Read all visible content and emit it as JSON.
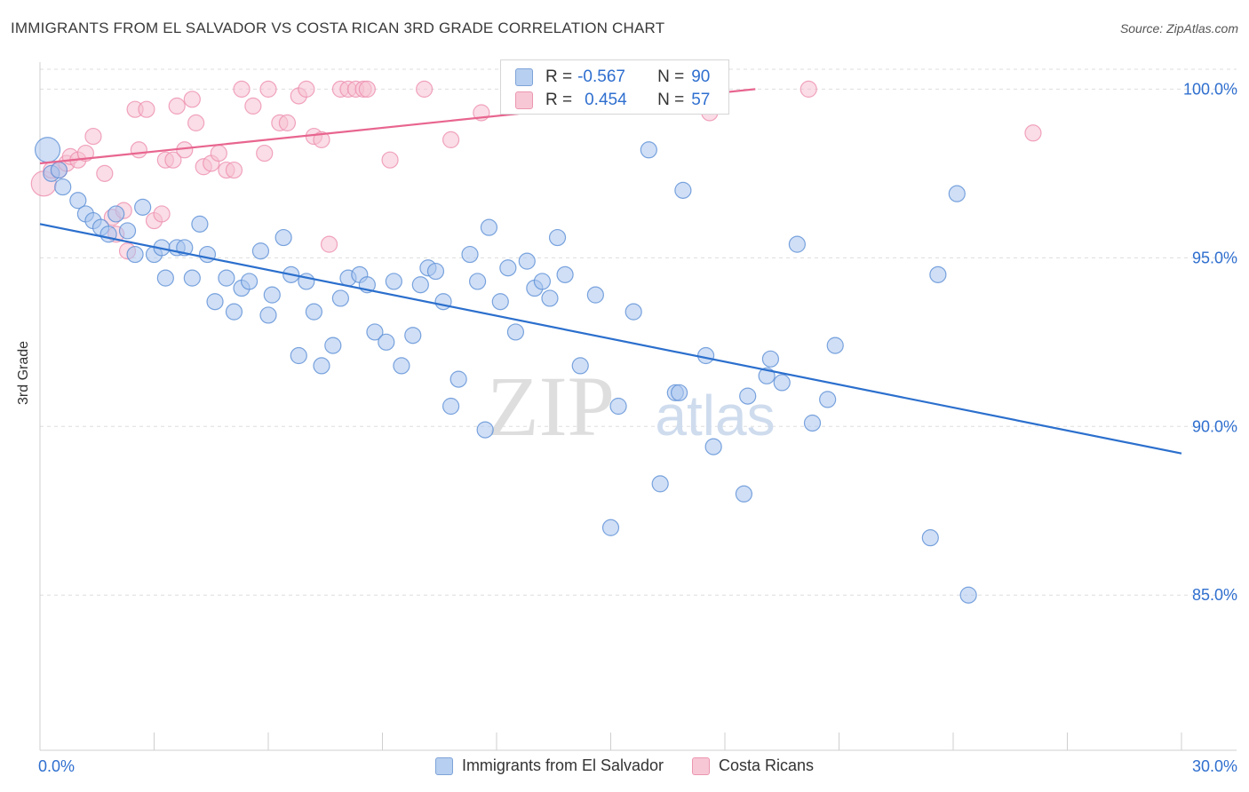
{
  "title": "IMMIGRANTS FROM EL SALVADOR VS COSTA RICAN 3RD GRADE CORRELATION CHART",
  "source": "Source: ZipAtlas.com",
  "watermark": {
    "zip": "ZIP",
    "atlas": "atlas"
  },
  "legend_box": {
    "rows": [
      {
        "r_label": "R =",
        "r_value": "-0.567",
        "n_label": "N =",
        "n_value": "90"
      },
      {
        "r_label": "R =",
        "r_value": "0.454",
        "n_label": "N =",
        "n_value": "57"
      }
    ]
  },
  "colors": {
    "blue": "#5b8fd6",
    "blue_fill": "#a9c5ee",
    "blue_line": "#2b6fcd",
    "pink": "#ee8fae",
    "pink_fill": "#f6c1d2",
    "pink_line": "#e8658f",
    "axis_text": "#2f6fcf",
    "grid": "#dddddd"
  },
  "chart_data": {
    "type": "scatter",
    "title": "IMMIGRANTS FROM EL SALVADOR VS COSTA RICAN 3RD GRADE CORRELATION CHART",
    "xlabel": "",
    "ylabel": "3rd Grade",
    "xlim": [
      0,
      30
    ],
    "ylim": [
      80.4,
      100.8
    ],
    "x_tick_labels": [
      "0.0%",
      "30.0%"
    ],
    "y_ticks": [
      85,
      90,
      95,
      100
    ],
    "y_tick_labels": [
      "85.0%",
      "90.0%",
      "95.0%",
      "100.0%"
    ],
    "grid": true,
    "legend_position": "bottom",
    "series": [
      {
        "name": "Immigrants from El Salvador",
        "color": "#5b8fd6",
        "r": -0.567,
        "n": 90,
        "trend": {
          "x": [
            0,
            30
          ],
          "y": [
            96.0,
            89.2
          ]
        },
        "points": [
          [
            0.2,
            98.2,
            14
          ],
          [
            0.3,
            97.5,
            9
          ],
          [
            0.5,
            97.6,
            9
          ],
          [
            0.6,
            97.1,
            9
          ],
          [
            1.0,
            96.7,
            9
          ],
          [
            1.2,
            96.3,
            9
          ],
          [
            1.4,
            96.1,
            9
          ],
          [
            1.6,
            95.9,
            9
          ],
          [
            1.8,
            95.7,
            9
          ],
          [
            2.0,
            96.3,
            9
          ],
          [
            2.3,
            95.8,
            9
          ],
          [
            2.5,
            95.1,
            9
          ],
          [
            2.7,
            96.5,
            9
          ],
          [
            3.0,
            95.1,
            9
          ],
          [
            3.2,
            95.3,
            9
          ],
          [
            3.3,
            94.4,
            9
          ],
          [
            3.6,
            95.3,
            9
          ],
          [
            3.8,
            95.3,
            9
          ],
          [
            4.0,
            94.4,
            9
          ],
          [
            4.2,
            96.0,
            9
          ],
          [
            4.4,
            95.1,
            9
          ],
          [
            4.6,
            93.7,
            9
          ],
          [
            4.9,
            94.4,
            9
          ],
          [
            5.1,
            93.4,
            9
          ],
          [
            5.3,
            94.1,
            9
          ],
          [
            5.5,
            94.3,
            9
          ],
          [
            5.8,
            95.2,
            9
          ],
          [
            6.0,
            93.3,
            9
          ],
          [
            6.1,
            93.9,
            9
          ],
          [
            6.4,
            95.6,
            9
          ],
          [
            6.6,
            94.5,
            9
          ],
          [
            6.8,
            92.1,
            9
          ],
          [
            7.0,
            94.3,
            9
          ],
          [
            7.2,
            93.4,
            9
          ],
          [
            7.4,
            91.8,
            9
          ],
          [
            7.7,
            92.4,
            9
          ],
          [
            7.9,
            93.8,
            9
          ],
          [
            8.1,
            94.4,
            9
          ],
          [
            8.4,
            94.5,
            9
          ],
          [
            8.6,
            94.2,
            9
          ],
          [
            8.8,
            92.8,
            9
          ],
          [
            9.1,
            92.5,
            9
          ],
          [
            9.3,
            94.3,
            9
          ],
          [
            9.5,
            91.8,
            9
          ],
          [
            9.8,
            92.7,
            9
          ],
          [
            10.0,
            94.2,
            9
          ],
          [
            10.2,
            94.7,
            9
          ],
          [
            10.4,
            94.6,
            9
          ],
          [
            10.6,
            93.7,
            9
          ],
          [
            10.8,
            90.6,
            9
          ],
          [
            11.0,
            91.4,
            9
          ],
          [
            11.3,
            95.1,
            9
          ],
          [
            11.5,
            94.3,
            9
          ],
          [
            11.7,
            89.9,
            9
          ],
          [
            11.8,
            95.9,
            9
          ],
          [
            12.1,
            93.7,
            9
          ],
          [
            12.3,
            94.7,
            9
          ],
          [
            12.5,
            92.8,
            9
          ],
          [
            12.8,
            94.9,
            9
          ],
          [
            13.0,
            94.1,
            9
          ],
          [
            13.2,
            94.3,
            9
          ],
          [
            13.4,
            93.8,
            9
          ],
          [
            13.6,
            95.6,
            9
          ],
          [
            13.8,
            94.5,
            9
          ],
          [
            14.2,
            91.8,
            9
          ],
          [
            14.6,
            93.9,
            9
          ],
          [
            15.0,
            87.0,
            9
          ],
          [
            15.2,
            90.6,
            9
          ],
          [
            15.6,
            93.4,
            9
          ],
          [
            16.0,
            98.2,
            9
          ],
          [
            16.3,
            88.3,
            9
          ],
          [
            16.7,
            91.0,
            9
          ],
          [
            16.8,
            91.0,
            9
          ],
          [
            16.9,
            97.0,
            9
          ],
          [
            17.5,
            92.1,
            9
          ],
          [
            17.7,
            89.4,
            9
          ],
          [
            18.5,
            88.0,
            9
          ],
          [
            18.6,
            90.9,
            9
          ],
          [
            19.1,
            91.5,
            9
          ],
          [
            19.2,
            92.0,
            9
          ],
          [
            19.5,
            91.3,
            9
          ],
          [
            19.9,
            95.4,
            9
          ],
          [
            20.3,
            90.1,
            9
          ],
          [
            20.7,
            90.8,
            9
          ],
          [
            20.9,
            92.4,
            9
          ],
          [
            23.4,
            86.7,
            9
          ],
          [
            23.6,
            94.5,
            9
          ],
          [
            24.1,
            96.9,
            9
          ],
          [
            24.4,
            85.0,
            9
          ],
          [
            13.2,
            90.0,
            0
          ]
        ]
      },
      {
        "name": "Costa Ricans",
        "color": "#ee8fae",
        "r": 0.454,
        "n": 57,
        "trend": {
          "x": [
            0,
            18.8
          ],
          "y": [
            97.8,
            100.0
          ]
        },
        "points": [
          [
            0.1,
            97.2,
            14
          ],
          [
            0.3,
            97.6,
            9
          ],
          [
            0.5,
            97.6,
            9
          ],
          [
            0.7,
            97.8,
            9
          ],
          [
            0.8,
            98.0,
            9
          ],
          [
            1.0,
            97.9,
            9
          ],
          [
            1.2,
            98.1,
            9
          ],
          [
            1.4,
            98.6,
            9
          ],
          [
            1.7,
            97.5,
            9
          ],
          [
            1.9,
            96.2,
            9
          ],
          [
            2.0,
            95.7,
            9
          ],
          [
            2.2,
            96.4,
            9
          ],
          [
            2.3,
            95.2,
            9
          ],
          [
            2.5,
            99.4,
            9
          ],
          [
            2.6,
            98.2,
            9
          ],
          [
            2.8,
            99.4,
            9
          ],
          [
            3.0,
            96.1,
            9
          ],
          [
            3.2,
            96.3,
            9
          ],
          [
            3.3,
            97.9,
            9
          ],
          [
            3.5,
            97.9,
            9
          ],
          [
            3.6,
            99.5,
            9
          ],
          [
            3.8,
            98.2,
            9
          ],
          [
            4.0,
            99.7,
            9
          ],
          [
            4.1,
            99.0,
            9
          ],
          [
            4.3,
            97.7,
            9
          ],
          [
            4.5,
            97.8,
            9
          ],
          [
            4.7,
            98.1,
            9
          ],
          [
            4.9,
            97.6,
            9
          ],
          [
            5.1,
            97.6,
            9
          ],
          [
            5.3,
            100.0,
            9
          ],
          [
            5.6,
            99.5,
            9
          ],
          [
            5.9,
            98.1,
            9
          ],
          [
            6.0,
            100.0,
            9
          ],
          [
            6.3,
            99.0,
            9
          ],
          [
            6.5,
            99.0,
            9
          ],
          [
            6.8,
            99.8,
            9
          ],
          [
            7.0,
            100.0,
            9
          ],
          [
            7.2,
            98.6,
            9
          ],
          [
            7.4,
            98.5,
            9
          ],
          [
            7.6,
            95.4,
            9
          ],
          [
            7.9,
            100.0,
            9
          ],
          [
            8.1,
            100.0,
            9
          ],
          [
            8.3,
            100.0,
            9
          ],
          [
            8.5,
            100.0,
            9
          ],
          [
            8.6,
            100.0,
            9
          ],
          [
            9.2,
            97.9,
            9
          ],
          [
            10.1,
            100.0,
            9
          ],
          [
            10.8,
            98.5,
            9
          ],
          [
            11.6,
            99.3,
            9
          ],
          [
            13.1,
            100.0,
            9
          ],
          [
            13.5,
            100.0,
            9
          ],
          [
            14.0,
            100.0,
            9
          ],
          [
            15.5,
            100.0,
            9
          ],
          [
            16.6,
            100.0,
            9
          ],
          [
            17.6,
            99.3,
            9
          ],
          [
            20.2,
            100.0,
            9
          ],
          [
            26.1,
            98.7,
            9
          ]
        ]
      }
    ]
  }
}
